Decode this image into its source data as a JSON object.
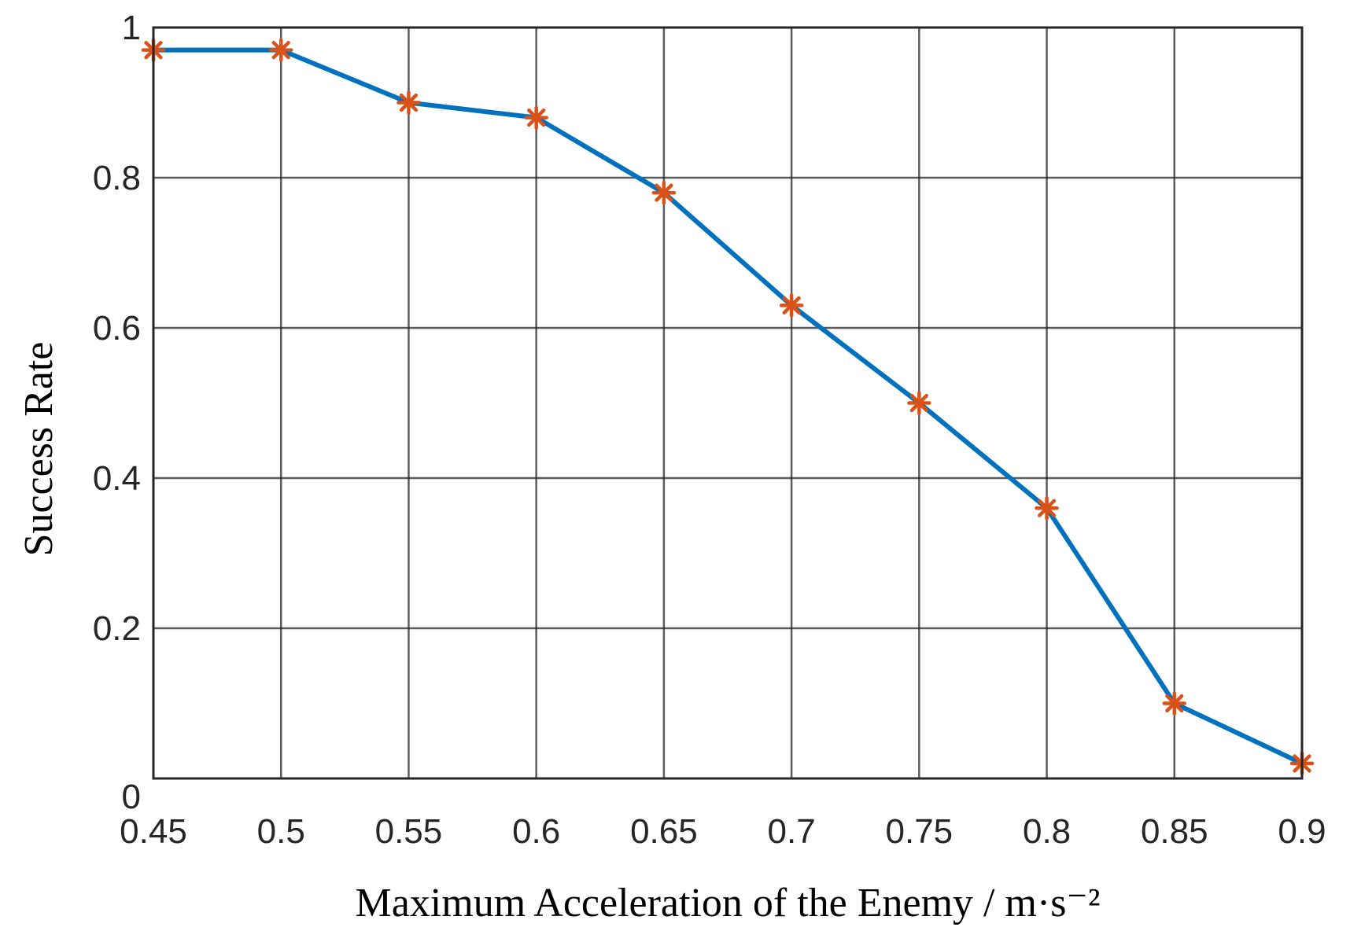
{
  "chart_data": {
    "type": "line",
    "title": "",
    "xlabel": "Maximum Acceleration of the Enemy / m·s⁻²",
    "ylabel": "Success Rate",
    "xlim": [
      0.45,
      0.9
    ],
    "ylim": [
      0,
      1
    ],
    "grid": true,
    "xticks": [
      0.45,
      0.5,
      0.55,
      0.6,
      0.65,
      0.7,
      0.75,
      0.8,
      0.85,
      0.9
    ],
    "xtick_labels": [
      "0.45",
      "0.5",
      "0.55",
      "0.6",
      "0.65",
      "0.7",
      "0.75",
      "0.8",
      "0.85",
      "0.9"
    ],
    "yticks": [
      0,
      0.2,
      0.4,
      0.6,
      0.8,
      1
    ],
    "ytick_labels": [
      "0",
      "0.2",
      "0.4",
      "0.6",
      "0.8",
      "1"
    ],
    "series": [
      {
        "name": "Success Rate",
        "line_color": "#0072BD",
        "marker_color": "#D95319",
        "marker": "asterisk",
        "x": [
          0.45,
          0.5,
          0.55,
          0.6,
          0.65,
          0.7,
          0.75,
          0.8,
          0.85,
          0.9
        ],
        "values": [
          0.97,
          0.97,
          0.9,
          0.88,
          0.78,
          0.63,
          0.5,
          0.36,
          0.1,
          0.02
        ]
      }
    ]
  }
}
